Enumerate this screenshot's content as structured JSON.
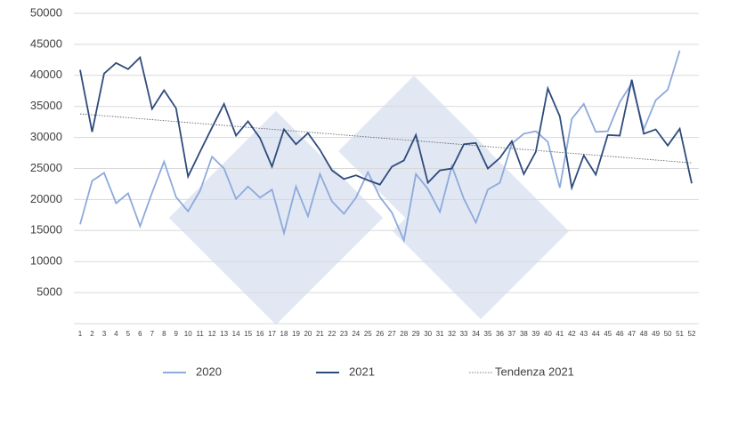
{
  "chart_data": {
    "type": "line",
    "categories": [
      "1",
      "2",
      "3",
      "4",
      "5",
      "6",
      "7",
      "8",
      "9",
      "10",
      "11",
      "12",
      "13",
      "14",
      "15",
      "16",
      "17",
      "18",
      "19",
      "20",
      "21",
      "22",
      "23",
      "24",
      "25",
      "26",
      "27",
      "28",
      "29",
      "30",
      "31",
      "32",
      "33",
      "34",
      "35",
      "36",
      "37",
      "38",
      "39",
      "40",
      "41",
      "42",
      "43",
      "44",
      "45",
      "46",
      "47",
      "48",
      "49",
      "50",
      "51",
      "52"
    ],
    "series": [
      {
        "name": "2020",
        "color": "#8eaadb",
        "values": [
          16000,
          23000,
          24300,
          19400,
          21000,
          15700,
          21100,
          26100,
          20400,
          18100,
          21400,
          26900,
          25000,
          20100,
          22100,
          20300,
          21600,
          14600,
          22100,
          17300,
          24100,
          19700,
          17700,
          20300,
          24400,
          20400,
          17900,
          13400,
          24100,
          21700,
          18000,
          25400,
          20100,
          16300,
          21600,
          22700,
          29000,
          30600,
          31000,
          29300,
          21900,
          33000,
          35400,
          30900,
          31000,
          35700,
          38700,
          31300,
          36000,
          37700,
          44000,
          null
        ]
      },
      {
        "name": "2021",
        "color": "#2f4b7c",
        "values": [
          40900,
          30900,
          40300,
          42000,
          41000,
          42900,
          34600,
          37600,
          34700,
          23700,
          27700,
          31600,
          35400,
          30300,
          32600,
          29900,
          25300,
          31300,
          28900,
          30700,
          28000,
          24700,
          23300,
          23900,
          23100,
          22400,
          25300,
          26300,
          30400,
          22700,
          24700,
          25000,
          28900,
          29100,
          25000,
          26700,
          29400,
          24100,
          27700,
          37900,
          33400,
          21900,
          27100,
          24000,
          30400,
          30300,
          39300,
          30600,
          31300,
          28700,
          31400,
          22600
        ]
      }
    ],
    "trendline": {
      "name": "Tendenza 2021",
      "color": "#555555",
      "start": 33800,
      "end": 25900
    },
    "ylim": [
      0,
      50000
    ],
    "yticks": [
      5000,
      10000,
      15000,
      20000,
      25000,
      30000,
      35000,
      40000,
      45000,
      50000
    ],
    "grid": true
  }
}
